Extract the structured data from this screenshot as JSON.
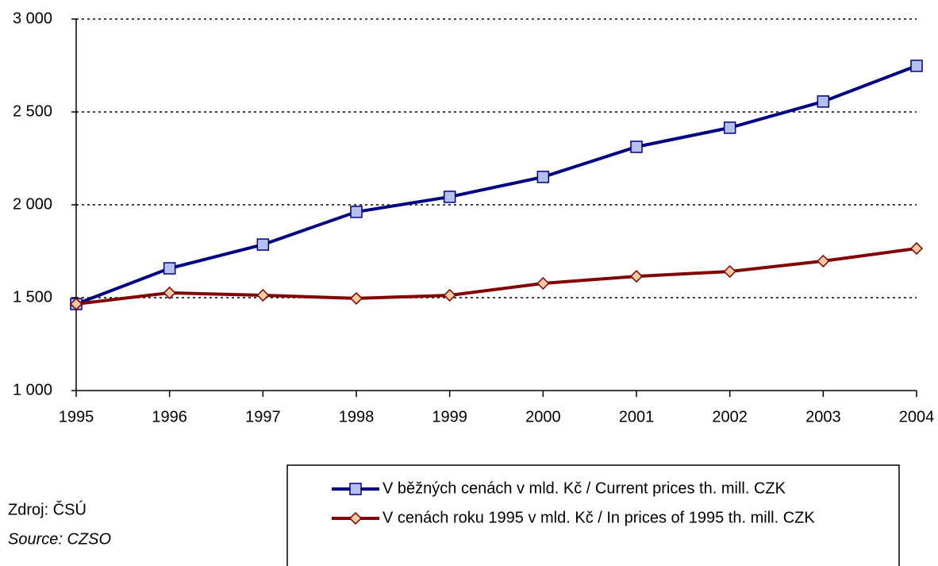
{
  "chart_data": {
    "type": "line",
    "x": [
      1995,
      1996,
      1997,
      1998,
      1999,
      2000,
      2001,
      2002,
      2003,
      2004
    ],
    "xlim": [
      1995,
      2004
    ],
    "xticks": [
      1995,
      1996,
      1997,
      1998,
      1999,
      2000,
      2001,
      2002,
      2003,
      2004
    ],
    "ylim": [
      1000,
      3000
    ],
    "yticks": [
      {
        "value": 1000,
        "label": "1 000"
      },
      {
        "value": 1500,
        "label": "1 500"
      },
      {
        "value": 2000,
        "label": "2 000"
      },
      {
        "value": 2500,
        "label": "2 500"
      },
      {
        "value": 3000,
        "label": "3 000"
      }
    ],
    "grid": true,
    "series": [
      {
        "name": "V běžných cenách v mld. Kč / Current prices th. mill. CZK",
        "color": "#000080",
        "marker": "square",
        "marker_color": "#b4c0ee",
        "values": [
          1466,
          1658,
          1786,
          1962,
          2043,
          2150,
          2312,
          2415,
          2556,
          2748
        ]
      },
      {
        "name": "V cenách roku 1995 v mld. Kč / In prices of 1995 th. mill. CZK",
        "color": "#800000",
        "marker": "diamond",
        "marker_color": "#fbc9a0",
        "values": [
          1466,
          1526,
          1513,
          1496,
          1513,
          1577,
          1615,
          1641,
          1697,
          1765
        ]
      }
    ]
  },
  "source": {
    "label": "Zdroj: ČSÚ",
    "label_en": "Source: CZSO"
  }
}
